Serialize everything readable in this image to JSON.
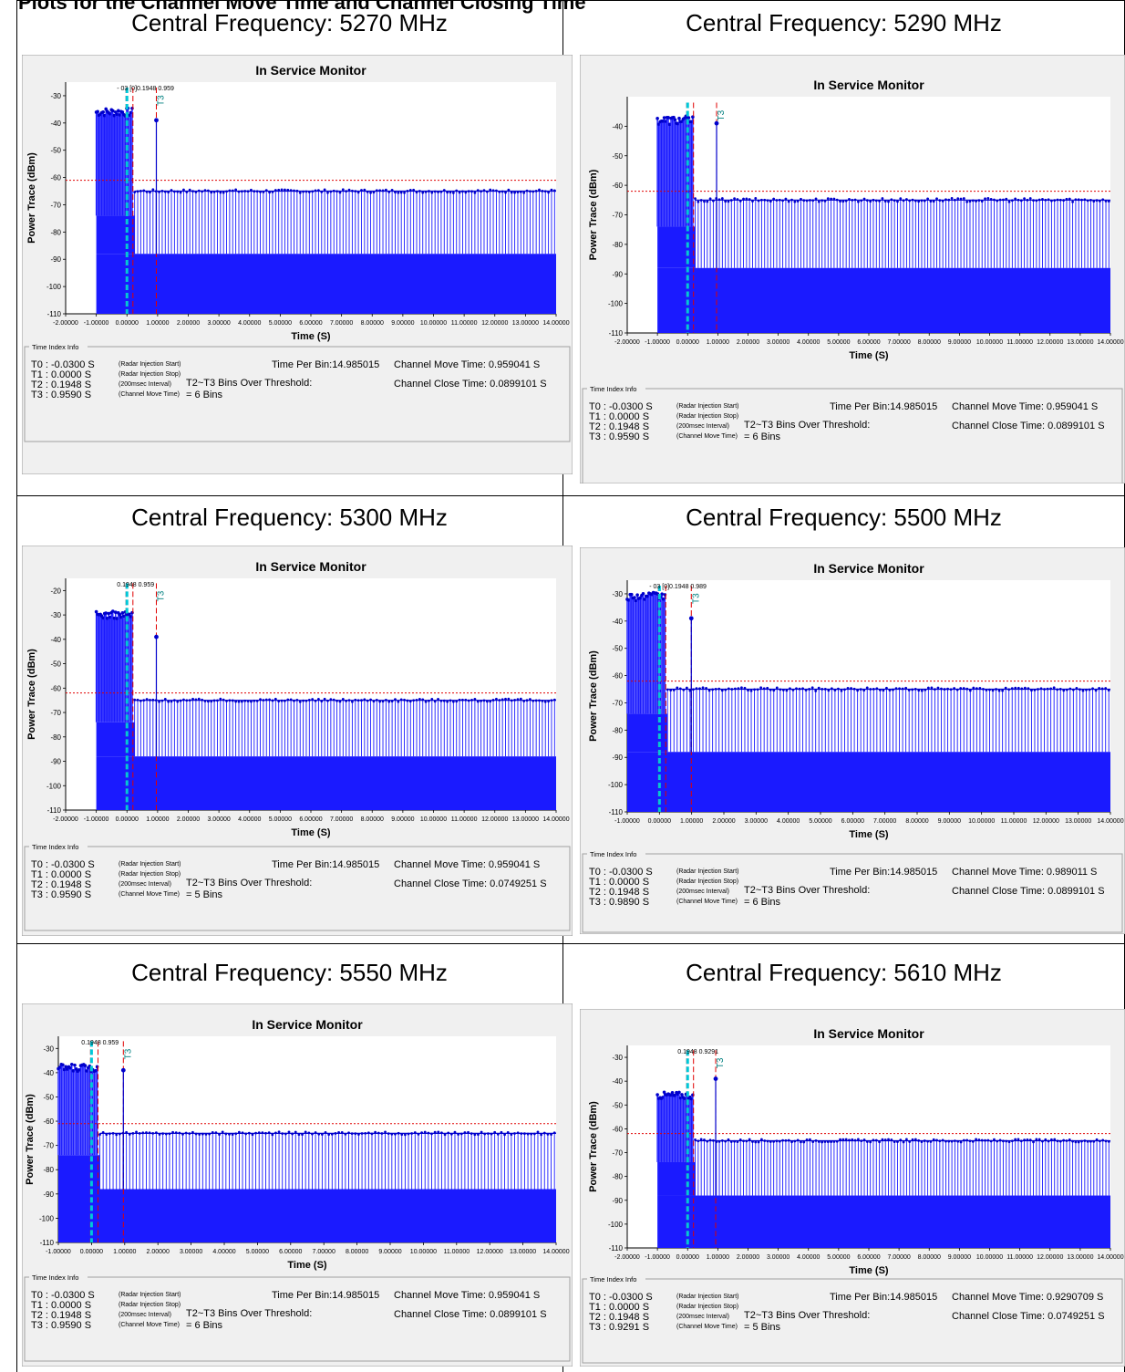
{
  "page": {
    "top_caption": "Plots for the Channel Move Time and Channel Closing Time"
  },
  "colors": {
    "trace": "#1a1aff",
    "trace_dark": "#0000cc",
    "threshold": "#e00000",
    "cyan": "#00c8d8",
    "teal_label": "#008080",
    "panel_bg": "#f0f0f0",
    "info_border": "#a0a0a0"
  },
  "common": {
    "chart_title": "In Service Monitor",
    "ylabel": "Power Trace (dBm)",
    "xlabel": "Time (S)",
    "info_group_label": "Time Index Info",
    "t0_desc": "(Radar Injection Start)",
    "t1_desc": "(Radar Injection Stop)",
    "t2_desc": "(200msec Interval)",
    "t3_desc": "(Channel Move Time)",
    "bins_over_label": "T2~T3 Bins Over Threshold:",
    "t0_label": "T0 : -0.0300  S",
    "t1_label": "T1 : 0.0000  S",
    "t2_label": "T2 : 0.1948  S"
  },
  "panels": [
    {
      "frequency_title": "Central Frequency: 5270 MHz",
      "xticks": [
        "-2.00000",
        "-1.00000",
        "0.00000",
        "1.00000",
        "2.00000",
        "3.00000",
        "4.00000",
        "5.00000",
        "6.00000",
        "7.00000",
        "8.00000",
        "9.00000",
        "10.00000",
        "11.00000",
        "12.00000",
        "13.00000",
        "14.00000"
      ],
      "yticks": [
        "-30",
        "-40",
        "-50",
        "-60",
        "-70",
        "-80",
        "-90",
        "-100",
        "-110"
      ],
      "marker_text": "- 03  [0]0.1948  0.959",
      "t3_label": "T3 : 0.9590  S",
      "time_per_bin": "Time Per Bin:14.985015",
      "channel_move_time": "Channel Move Time: 0.959041  S",
      "channel_close_time": "Channel Close Time: 0.0899101  S",
      "bins_over_value": "= 6 Bins"
    },
    {
      "frequency_title": "Central Frequency: 5290 MHz",
      "xticks": [
        "-2.00000",
        "-1.00000",
        "0.00000",
        "1.00000",
        "2.00000",
        "3.00000",
        "4.00000",
        "5.00000",
        "6.00000",
        "7.00000",
        "8.00000",
        "9.00000",
        "10.00000",
        "11.00000",
        "12.00000",
        "13.00000",
        "14.00000"
      ],
      "yticks": [
        "",
        "-40",
        "-50",
        "-60",
        "-70",
        "-80",
        "-90",
        "-100",
        "-110"
      ],
      "marker_text": "",
      "t3_label": "T3 : 0.9590  S",
      "time_per_bin": "Time Per Bin:14.985015",
      "channel_move_time": "Channel Move Time: 0.959041  S",
      "channel_close_time": "Channel Close Time: 0.0899101  S",
      "bins_over_value": "= 6 Bins"
    },
    {
      "frequency_title": "Central Frequency: 5300 MHz",
      "xticks": [
        "-2.00000",
        "-1.00000",
        "0.00000",
        "1.00000",
        "2.00000",
        "3.00000",
        "4.00000",
        "5.00000",
        "6.00000",
        "7.00000",
        "8.00000",
        "9.00000",
        "10.00000",
        "11.00000",
        "12.00000",
        "13.00000",
        "14.00000"
      ],
      "yticks": [
        "-20",
        "-30",
        "-40",
        "-50",
        "-60",
        "-70",
        "-80",
        "-90",
        "-100",
        "-110"
      ],
      "marker_text": "0.1948  0.959",
      "t3_label": "T3 : 0.9590  S",
      "time_per_bin": "Time Per Bin:14.985015",
      "channel_move_time": "Channel Move Time: 0.959041  S",
      "channel_close_time": "Channel Close Time: 0.0749251  S",
      "bins_over_value": "= 5 Bins"
    },
    {
      "frequency_title": "Central Frequency: 5500 MHz",
      "xticks": [
        "-1.00000",
        "0.00000",
        "1.00000",
        "2.00000",
        "3.00000",
        "4.00000",
        "5.00000",
        "6.00000",
        "7.00000",
        "8.00000",
        "9.00000",
        "10.00000",
        "11.00000",
        "12.00000",
        "13.00000",
        "14.00000"
      ],
      "yticks": [
        "-30",
        "-40",
        "-50",
        "-60",
        "-70",
        "-80",
        "-90",
        "-100",
        "-110"
      ],
      "marker_text": "- 03  [0]0.1948  0.989",
      "t3_label": "T3 : 0.9890  S",
      "time_per_bin": "Time Per Bin:14.985015",
      "channel_move_time": "Channel Move Time: 0.989011  S",
      "channel_close_time": "Channel Close Time: 0.0899101  S",
      "bins_over_value": "= 6 Bins"
    },
    {
      "frequency_title": "Central Frequency: 5550 MHz",
      "xticks": [
        "-1.00000",
        "0.00000",
        "1.00000",
        "2.00000",
        "3.00000",
        "4.00000",
        "5.00000",
        "6.00000",
        "7.00000",
        "8.00000",
        "9.00000",
        "10.00000",
        "11.00000",
        "12.00000",
        "13.00000",
        "14.00000"
      ],
      "yticks": [
        "-30",
        "-40",
        "-50",
        "-60",
        "-70",
        "-80",
        "-90",
        "-100",
        "-110"
      ],
      "marker_text": "0.1948  0.959",
      "t3_label": "T3 : 0.9590  S",
      "time_per_bin": "Time Per Bin:14.985015",
      "channel_move_time": "Channel Move Time: 0.959041  S",
      "channel_close_time": "Channel Close Time: 0.0899101  S",
      "bins_over_value": "= 6 Bins"
    },
    {
      "frequency_title": "Central Frequency: 5610 MHz",
      "xticks": [
        "-2.00000",
        "-1.00000",
        "0.00000",
        "1.00000",
        "2.00000",
        "3.00000",
        "4.00000",
        "5.00000",
        "6.00000",
        "7.00000",
        "8.00000",
        "9.00000",
        "10.00000",
        "11.00000",
        "12.00000",
        "13.00000",
        "14.00000"
      ],
      "yticks": [
        "-30",
        "-40",
        "-50",
        "-60",
        "-70",
        "-80",
        "-90",
        "-100",
        "-110"
      ],
      "marker_text": "0.1948  0.9291",
      "t3_label": "T3 : 0.9291  S",
      "time_per_bin": "Time Per Bin:14.985015",
      "channel_move_time": "Channel Move Time: 0.9290709  S",
      "channel_close_time": "Channel Close Time: 0.0749251  S",
      "bins_over_value": "= 5 Bins"
    }
  ],
  "chart_data": [
    {
      "type": "bar",
      "title": "In Service Monitor",
      "xlabel": "Time (S)",
      "ylabel": "Power Trace (dBm)",
      "xlim": [
        -2,
        14
      ],
      "ylim": [
        -110,
        -25
      ],
      "threshold_dbm": -61,
      "markers": {
        "T0": -0.03,
        "T1": 0.0,
        "T2": 0.1948,
        "T3": 0.959
      },
      "series": [
        {
          "values_description_free": true,
          "x": [
            -1.0,
            -0.5,
            0.0,
            0.5,
            1.0,
            2.0,
            4.0,
            6.0,
            8.0,
            10.0,
            12.0,
            14.0
          ],
          "y": [
            -36,
            -35,
            -35,
            -65,
            -66,
            -65,
            -65,
            -65,
            -65,
            -65,
            -65,
            -65
          ]
        }
      ]
    },
    {
      "type": "bar",
      "title": "In Service Monitor",
      "xlabel": "Time (S)",
      "ylabel": "Power Trace (dBm)",
      "xlim": [
        -2,
        14
      ],
      "ylim": [
        -110,
        -30
      ],
      "threshold_dbm": -62,
      "markers": {
        "T0": -0.03,
        "T1": 0.0,
        "T2": 0.1948,
        "T3": 0.959
      },
      "series": [
        {
          "x": [
            -1.0,
            -0.5,
            0.0,
            0.5,
            1.0,
            2.0,
            4.0,
            6.0,
            8.0,
            10.0,
            12.0,
            14.0
          ],
          "y": [
            -38,
            -40,
            -38,
            -66,
            -65,
            -65,
            -65,
            -65,
            -65,
            -65,
            -65,
            -66
          ]
        }
      ]
    },
    {
      "type": "bar",
      "title": "In Service Monitor",
      "xlabel": "Time (S)",
      "ylabel": "Power Trace (dBm)",
      "xlim": [
        -2,
        14
      ],
      "ylim": [
        -110,
        -15
      ],
      "threshold_dbm": -62,
      "markers": {
        "T0": -0.03,
        "T1": 0.0,
        "T2": 0.1948,
        "T3": 0.959
      },
      "series": [
        {
          "x": [
            -1.0,
            -0.5,
            0.0,
            0.5,
            1.0,
            2.0,
            4.0,
            6.0,
            8.0,
            10.0,
            12.0,
            14.0
          ],
          "y": [
            -30,
            -27,
            -26,
            -65,
            -65,
            -65,
            -65,
            -65,
            -65,
            -65,
            -65,
            -65
          ]
        }
      ]
    },
    {
      "type": "bar",
      "title": "In Service Monitor",
      "xlabel": "Time (S)",
      "ylabel": "Power Trace (dBm)",
      "xlim": [
        -1,
        14
      ],
      "ylim": [
        -110,
        -25
      ],
      "threshold_dbm": -62,
      "markers": {
        "T0": -0.03,
        "T1": 0.0,
        "T2": 0.1948,
        "T3": 0.989
      },
      "series": [
        {
          "x": [
            -1.0,
            -0.5,
            0.0,
            0.5,
            1.0,
            2.0,
            4.0,
            6.0,
            8.0,
            10.0,
            12.0,
            14.0
          ],
          "y": [
            -31,
            -32,
            -31,
            -65,
            -65,
            -65,
            -65,
            -65,
            -65,
            -65,
            -65,
            -65
          ]
        }
      ]
    },
    {
      "type": "bar",
      "title": "In Service Monitor",
      "xlabel": "Time (S)",
      "ylabel": "Power Trace (dBm)",
      "xlim": [
        -1,
        14
      ],
      "ylim": [
        -110,
        -25
      ],
      "threshold_dbm": -61,
      "markers": {
        "T0": -0.03,
        "T1": 0.0,
        "T2": 0.1948,
        "T3": 0.959
      },
      "series": [
        {
          "x": [
            -1.0,
            -0.5,
            0.0,
            0.5,
            1.0,
            2.0,
            4.0,
            6.0,
            8.0,
            10.0,
            12.0,
            14.0
          ],
          "y": [
            -38,
            -36,
            -38,
            -65,
            -65,
            -65,
            -65,
            -65,
            -65,
            -65,
            -65,
            -65
          ]
        }
      ]
    },
    {
      "type": "bar",
      "title": "In Service Monitor",
      "xlabel": "Time (S)",
      "ylabel": "Power Trace (dBm)",
      "xlim": [
        -2,
        14
      ],
      "ylim": [
        -110,
        -25
      ],
      "threshold_dbm": -62,
      "markers": {
        "T0": -0.03,
        "T1": 0.0,
        "T2": 0.1948,
        "T3": 0.9291
      },
      "series": [
        {
          "x": [
            -1.0,
            -0.5,
            0.0,
            0.5,
            1.0,
            2.0,
            4.0,
            6.0,
            8.0,
            10.0,
            12.0,
            14.0
          ],
          "y": [
            -46,
            -40,
            -38,
            -65,
            -65,
            -65,
            -65,
            -65,
            -65,
            -65,
            -65,
            -65
          ]
        }
      ]
    }
  ]
}
